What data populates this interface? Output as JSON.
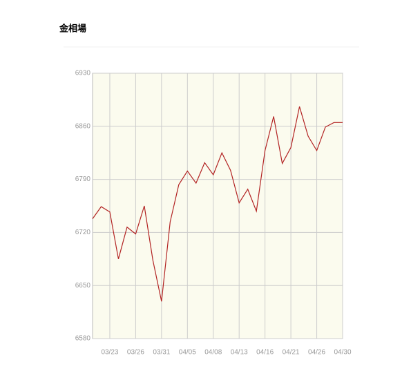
{
  "chart_data": {
    "type": "line",
    "title": "金相場",
    "categories": [
      null,
      null,
      "03/23",
      null,
      null,
      "03/26",
      null,
      null,
      "03/31",
      null,
      null,
      "04/05",
      null,
      null,
      "04/08",
      null,
      null,
      "04/13",
      null,
      null,
      "04/16",
      null,
      null,
      "04/21",
      null,
      null,
      "04/26",
      null,
      null,
      "04/30"
    ],
    "values": [
      6738,
      6754,
      6747,
      6685,
      6727,
      6718,
      6755,
      6683,
      6629,
      6734,
      6783,
      6801,
      6785,
      6812,
      6796,
      6825,
      6802,
      6759,
      6777,
      6748,
      6828,
      6873,
      6811,
      6832,
      6886,
      6847,
      6828,
      6859,
      6865,
      6865
    ],
    "color": "#b22222",
    "ylim": [
      6580,
      6930
    ],
    "yticks": [
      6580,
      6650,
      6720,
      6790,
      6860,
      6930
    ],
    "grid": true
  }
}
